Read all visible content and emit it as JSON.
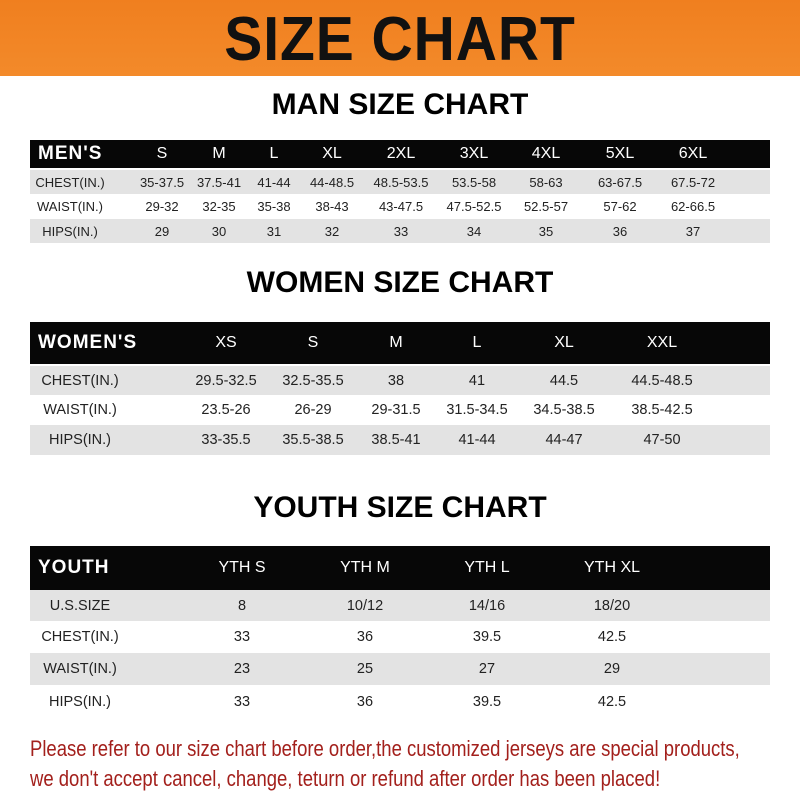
{
  "banner_title": "SIZE CHART",
  "colors": {
    "banner": "#f07f1f",
    "header_row": "#070707",
    "stripe": "#e3e3e3",
    "notice": "#a3201c"
  },
  "men": {
    "title": "MAN SIZE CHART",
    "header": [
      "MEN'S",
      "S",
      "M",
      "L",
      "XL",
      "2XL",
      "3XL",
      "4XL",
      "5XL",
      "6XL"
    ],
    "rows": [
      [
        "CHEST(IN.)",
        "35-37.5",
        "37.5-41",
        "41-44",
        "44-48.5",
        "48.5-53.5",
        "53.5-58",
        "58-63",
        "63-67.5",
        "67.5-72"
      ],
      [
        "WAIST(IN.)",
        "29-32",
        "32-35",
        "35-38",
        "38-43",
        "43-47.5",
        "47.5-52.5",
        "52.5-57",
        "57-62",
        "62-66.5"
      ],
      [
        "HIPS(IN.)",
        "29",
        "30",
        "31",
        "32",
        "33",
        "34",
        "35",
        "36",
        "37"
      ]
    ]
  },
  "women": {
    "title": "WOMEN SIZE CHART",
    "header": [
      "WOMEN'S",
      "XS",
      "S",
      "M",
      "L",
      "XL",
      "XXL"
    ],
    "rows": [
      [
        "CHEST(IN.)",
        "29.5-32.5",
        "32.5-35.5",
        "38",
        "41",
        "44.5",
        "44.5-48.5"
      ],
      [
        "WAIST(IN.)",
        "23.5-26",
        "26-29",
        "29-31.5",
        "31.5-34.5",
        "34.5-38.5",
        "38.5-42.5"
      ],
      [
        "HIPS(IN.)",
        "33-35.5",
        "35.5-38.5",
        "38.5-41",
        "41-44",
        "44-47",
        "47-50"
      ]
    ]
  },
  "youth": {
    "title": "YOUTH SIZE CHART",
    "header": [
      "YOUTH",
      "YTH S",
      "YTH M",
      "YTH L",
      "YTH XL"
    ],
    "rows": [
      [
        "U.S.SIZE",
        "8",
        "10/12",
        "14/16",
        "18/20"
      ],
      [
        "CHEST(IN.)",
        "33",
        "36",
        "39.5",
        "42.5"
      ],
      [
        "WAIST(IN.)",
        "23",
        "25",
        "27",
        "29"
      ],
      [
        "HIPS(IN.)",
        "33",
        "36",
        "39.5",
        "42.5"
      ]
    ]
  },
  "notice": [
    "Please refer to our size chart before order,the customized jerseys are special products,",
    "we don't accept cancel, change, teturn or refund after order has been placed!"
  ]
}
